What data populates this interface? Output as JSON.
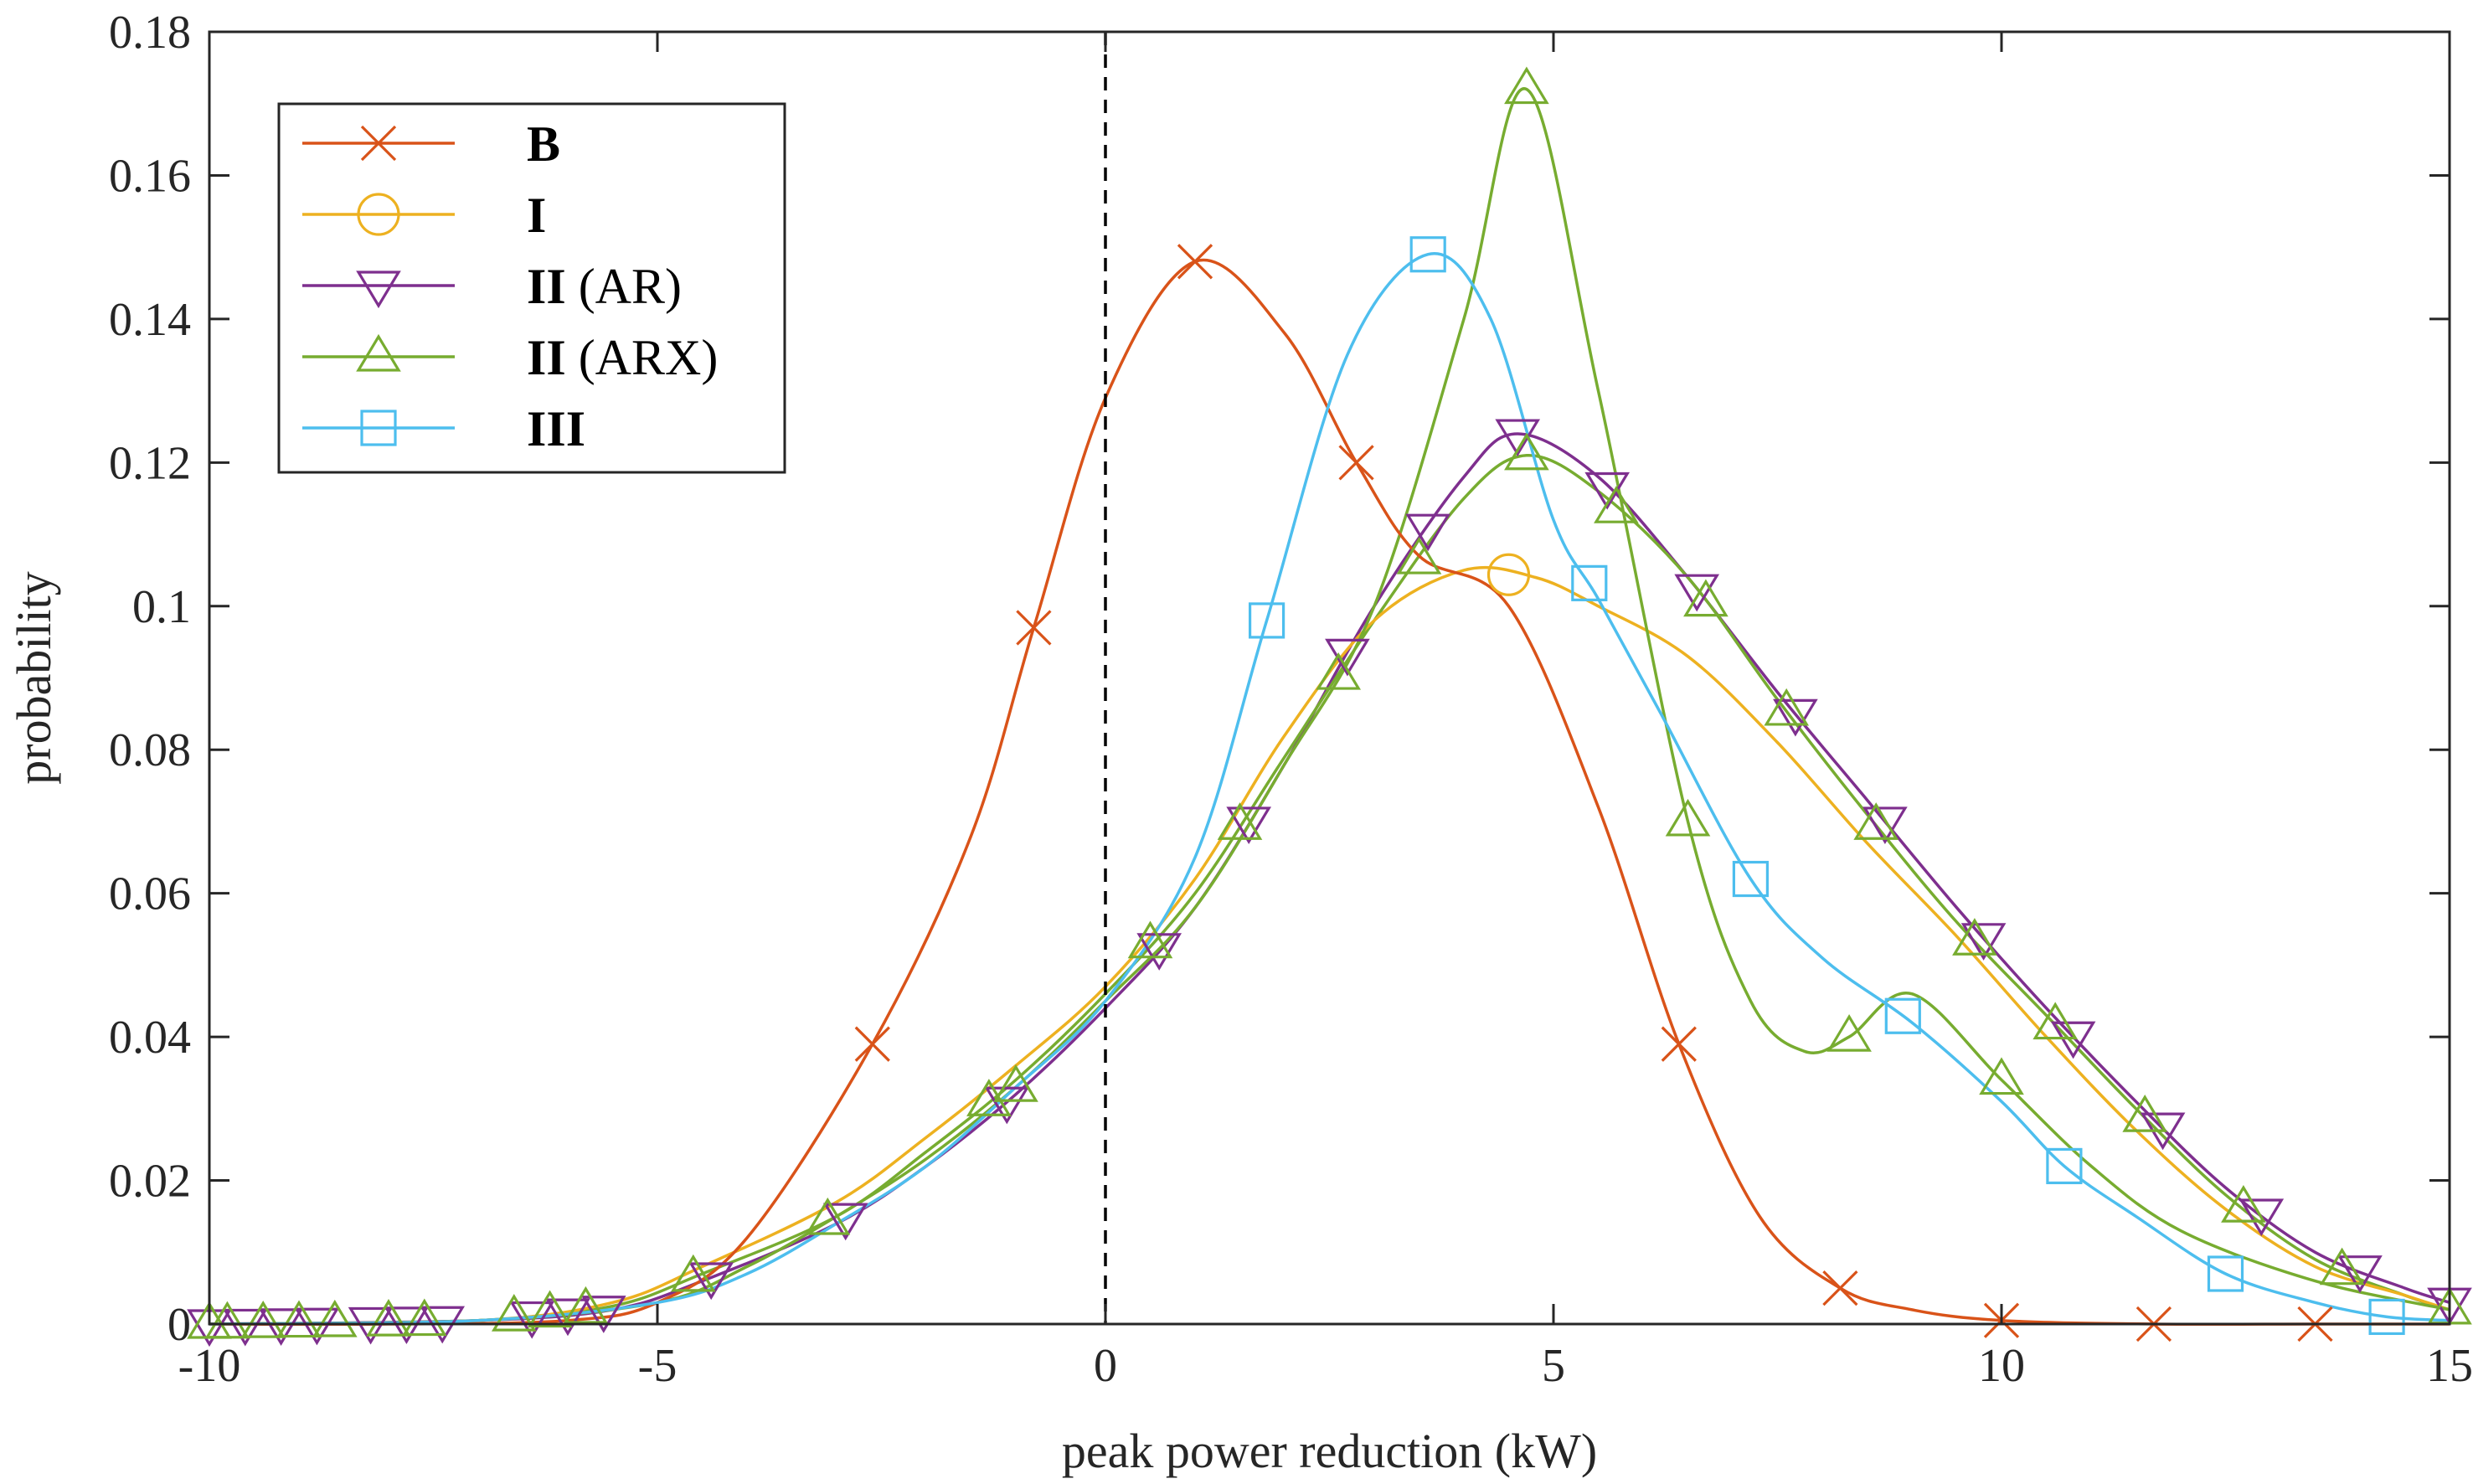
{
  "chart_data": {
    "type": "line",
    "xlabel": "peak power reduction (kW)",
    "ylabel": "probability",
    "xlim": [
      -10,
      15
    ],
    "ylim": [
      0,
      0.18
    ],
    "x_ticks": [
      -10,
      -5,
      0,
      5,
      10,
      15
    ],
    "x_tick_labels": [
      "-10",
      "-5",
      "0",
      "5",
      "10",
      "15"
    ],
    "y_ticks": [
      0,
      0.02,
      0.04,
      0.06,
      0.08,
      0.1,
      0.12,
      0.14,
      0.16,
      0.18
    ],
    "y_tick_labels": [
      "0",
      "0.02",
      "0.04",
      "0.06",
      "0.08",
      "0.1",
      "0.12",
      "0.14",
      "0.16",
      "0.18"
    ],
    "grid": false,
    "legend_position": "top-left",
    "reference_line": {
      "x": 0,
      "style": "dashed",
      "color": "#000000"
    },
    "legend": [
      {
        "bold": "B",
        "suffix": "",
        "color": "#D95319",
        "marker": "x"
      },
      {
        "bold": "I",
        "suffix": "",
        "color": "#EDB120",
        "marker": "circle"
      },
      {
        "bold": "II",
        "suffix": " (AR)",
        "color": "#7E2F8E",
        "marker": "triangle-down"
      },
      {
        "bold": "II",
        "suffix": " (ARX)",
        "color": "#77AC30",
        "marker": "triangle-up"
      },
      {
        "bold": "III",
        "suffix": "",
        "color": "#4DBEEE",
        "marker": "square"
      }
    ],
    "series": [
      {
        "name": "B",
        "color": "#D95319",
        "marker": "x",
        "x": [
          -10,
          -8,
          -6,
          -5,
          -4,
          -2.6,
          -1.5,
          -0.8,
          0,
          1,
          2,
          2.8,
          3.5,
          4.5,
          5.5,
          6.4,
          7.3,
          8.2,
          9,
          10,
          11.7,
          13.5,
          15
        ],
        "y": [
          0,
          0,
          0.0005,
          0.003,
          0.012,
          0.039,
          0.068,
          0.097,
          0.129,
          0.148,
          0.138,
          0.12,
          0.107,
          0.1,
          0.072,
          0.039,
          0.015,
          0.005,
          0.002,
          0.0005,
          0,
          0,
          0
        ],
        "markers_x": [
          -2.6,
          -0.8,
          1,
          2.8,
          6.4,
          8.2,
          10,
          11.7,
          13.5
        ]
      },
      {
        "name": "I",
        "color": "#EDB120",
        "marker": "circle",
        "x": [
          -10,
          -7,
          -5.5,
          -4.5,
          -3,
          -2,
          -1,
          0,
          1,
          2,
          3,
          4,
          4.8,
          5.5,
          6.5,
          7.5,
          8.5,
          9.5,
          10.5,
          11.5,
          12.5,
          13.5,
          14.5,
          15
        ],
        "y": [
          0,
          0.0005,
          0.003,
          0.008,
          0.017,
          0.026,
          0.036,
          0.047,
          0.062,
          0.082,
          0.098,
          0.105,
          0.104,
          0.1,
          0.093,
          0.081,
          0.067,
          0.054,
          0.04,
          0.027,
          0.016,
          0.008,
          0.004,
          0.002
        ],
        "markers_x": [
          4.5
        ]
      },
      {
        "name": "II (AR)",
        "color": "#7E2F8E",
        "marker": "triangle-down",
        "x": [
          -10,
          -7,
          -5.5,
          -4.5,
          -3,
          -2,
          -1,
          0,
          1,
          2,
          3,
          4,
          4.6,
          5.5,
          6.5,
          7.5,
          8.5,
          9.5,
          10.5,
          11.5,
          12.5,
          13.5,
          14.5,
          15
        ],
        "y": [
          0,
          0.0005,
          0.002,
          0.006,
          0.014,
          0.022,
          0.032,
          0.044,
          0.058,
          0.078,
          0.1,
          0.118,
          0.124,
          0.118,
          0.104,
          0.088,
          0.073,
          0.058,
          0.044,
          0.031,
          0.019,
          0.01,
          0.005,
          0.003
        ],
        "markers_x": [
          -10,
          -9.6,
          -9.2,
          -8.8,
          -8.2,
          -7.8,
          -7.4,
          -6.4,
          -6,
          -5.6,
          -4.4,
          -2.9,
          -1.1,
          0.6,
          1.6,
          2.7,
          3.6,
          4.6,
          5.6,
          6.6,
          7.7,
          8.7,
          9.8,
          10.8,
          11.8,
          12.9,
          14,
          15
        ]
      },
      {
        "name": "II (ARX)",
        "color": "#77AC30",
        "marker": "triangle-up",
        "x": [
          -10,
          -7,
          -5.5,
          -4.5,
          -3,
          -2,
          -1,
          0,
          1,
          2,
          3,
          4,
          4.7,
          5.5,
          6.5,
          7.5,
          8.5,
          9.5,
          10.5,
          11.5,
          12.5,
          13.5,
          14.5,
          15
        ],
        "y": [
          0,
          0.0005,
          0.0025,
          0.007,
          0.015,
          0.024,
          0.034,
          0.046,
          0.06,
          0.079,
          0.098,
          0.115,
          0.121,
          0.116,
          0.104,
          0.087,
          0.071,
          0.056,
          0.043,
          0.03,
          0.018,
          0.009,
          0.004,
          0.002
        ],
        "markers_x": [
          -10,
          -9.8,
          -9.4,
          -9,
          -8.6,
          -8,
          -7.6,
          -6.6,
          -6.2,
          -5.8,
          -4.6,
          -3.1,
          -1.3,
          0.5,
          1.5,
          2.6,
          3.5,
          4.7,
          5.7,
          6.7,
          7.6,
          8.6,
          9.7,
          10.6,
          11.6,
          12.7,
          13.8,
          15
        ]
      },
      {
        "name": "II (ARX)",
        "color": "#77AC30",
        "marker": "triangle-up",
        "x": [
          -10,
          -7,
          -5,
          -4,
          -3,
          -2,
          -1,
          0,
          1,
          2,
          3,
          4,
          4.7,
          5.5,
          6.5,
          7.2,
          7.8,
          8.3,
          9,
          10,
          11,
          12,
          13.5,
          15
        ],
        "y": [
          0,
          0.0005,
          0.003,
          0.008,
          0.015,
          0.023,
          0.033,
          0.045,
          0.058,
          0.078,
          0.1,
          0.14,
          0.172,
          0.13,
          0.07,
          0.045,
          0.038,
          0.04,
          0.046,
          0.034,
          0.022,
          0.013,
          0.006,
          0.002
        ],
        "markers_x": [
          -1,
          4.7,
          6.5,
          8.3,
          10
        ]
      },
      {
        "name": "III",
        "color": "#4DBEEE",
        "marker": "square",
        "x": [
          -10,
          -7,
          -5,
          -4,
          -3,
          -2,
          -1,
          0,
          1,
          1.8,
          2.7,
          3.6,
          4.3,
          5,
          5.5,
          6.2,
          7.2,
          8,
          9,
          10,
          10.7,
          11.5,
          12.5,
          13.5,
          14.3,
          15
        ],
        "y": [
          0,
          0.0005,
          0.003,
          0.007,
          0.014,
          0.022,
          0.033,
          0.045,
          0.065,
          0.098,
          0.135,
          0.149,
          0.14,
          0.112,
          0.101,
          0.085,
          0.062,
          0.051,
          0.042,
          0.031,
          0.022,
          0.015,
          0.007,
          0.003,
          0.001,
          0.0005
        ],
        "markers_x": [
          1.8,
          3.6,
          5.4,
          7.2,
          8.9,
          10.7,
          12.5,
          14.3
        ]
      }
    ]
  }
}
